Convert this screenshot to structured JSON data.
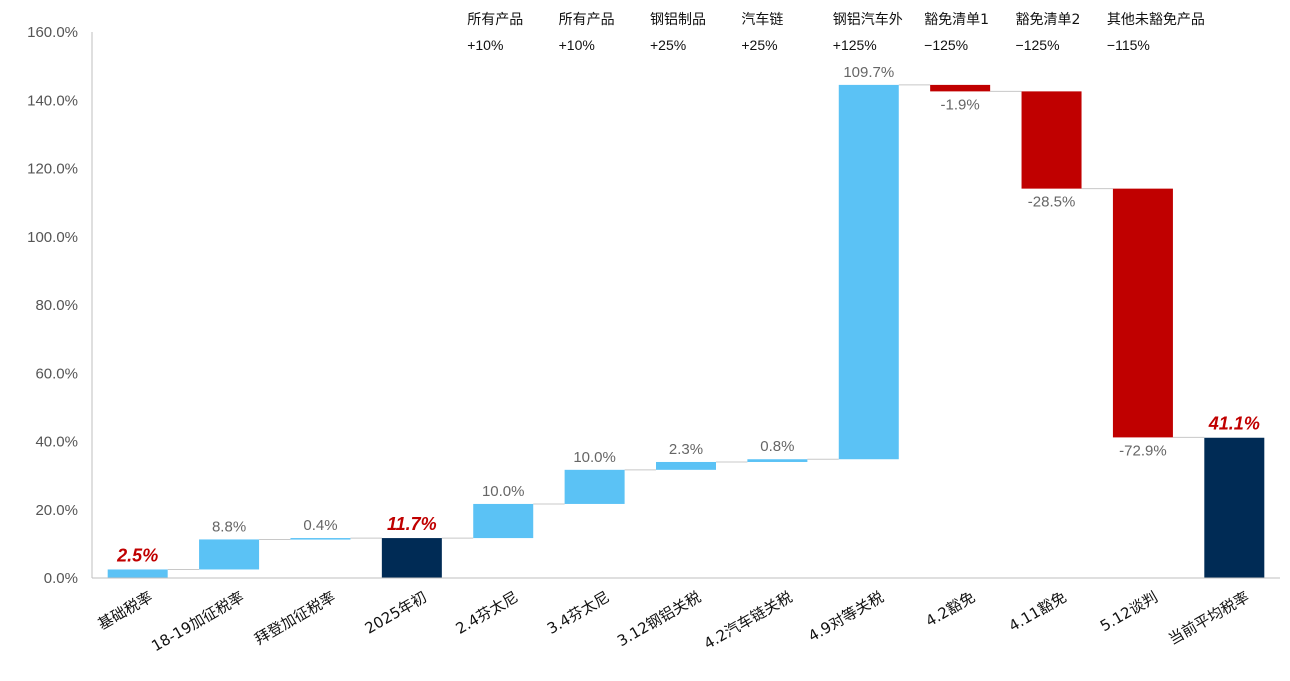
{
  "chart_data": {
    "type": "waterfall",
    "categories": [
      "基础税率",
      "18-19加征税率",
      "拜登加征税率",
      "2025年初",
      "2.4芬太尼",
      "3.4芬太尼",
      "3.12钢铝关税",
      "4.2汽车链关税",
      "4.9对等关税",
      "4.2豁免",
      "4.11豁免",
      "5.12谈判",
      "当前平均税率"
    ],
    "values": [
      2.5,
      8.8,
      0.4,
      11.7,
      10.0,
      10.0,
      2.3,
      0.8,
      109.7,
      -1.9,
      -28.5,
      -72.9,
      41.1
    ],
    "kinds": [
      "total",
      "delta",
      "delta",
      "total",
      "delta",
      "delta",
      "delta",
      "delta",
      "delta",
      "delta",
      "delta",
      "delta",
      "total"
    ],
    "value_labels": [
      "2.5%",
      "8.8%",
      "0.4%",
      "11.7%",
      "10.0%",
      "10.0%",
      "2.3%",
      "0.8%",
      "109.7%",
      "-1.9%",
      "-28.5%",
      "-72.9%",
      "41.1%"
    ],
    "highlighted_labels": [
      0,
      3,
      12
    ],
    "yticks": [
      "0.0%",
      "20.0%",
      "40.0%",
      "60.0%",
      "80.0%",
      "100.0%",
      "120.0%",
      "140.0%",
      "160.0%"
    ],
    "ylim": [
      0,
      160
    ],
    "grid": false,
    "annotations": [
      {
        "category_index": 4,
        "line1": "所有产品",
        "line2": "+10%"
      },
      {
        "category_index": 5,
        "line1": "所有产品",
        "line2": "+10%"
      },
      {
        "category_index": 6,
        "line1": "钢铝制品",
        "line2": "+25%"
      },
      {
        "category_index": 7,
        "line1": "汽车链",
        "line2": "+25%"
      },
      {
        "category_index": 8,
        "line1": "钢铝汽车外",
        "line2": "+125%"
      },
      {
        "category_index": 9,
        "line1": "豁免清单1",
        "line2": "−125%"
      },
      {
        "category_index": 10,
        "line1": "豁免清单2",
        "line2": "−125%"
      },
      {
        "category_index": 11,
        "line1": "其他未豁免产品",
        "line2": "−115%"
      }
    ],
    "colors": {
      "total": "#002b55",
      "increase": "#5bc2f5",
      "decrease": "#c00000",
      "highlight_label": "#c00000",
      "connector": "#c8c8c8",
      "axis": "#bfbfbf"
    }
  }
}
